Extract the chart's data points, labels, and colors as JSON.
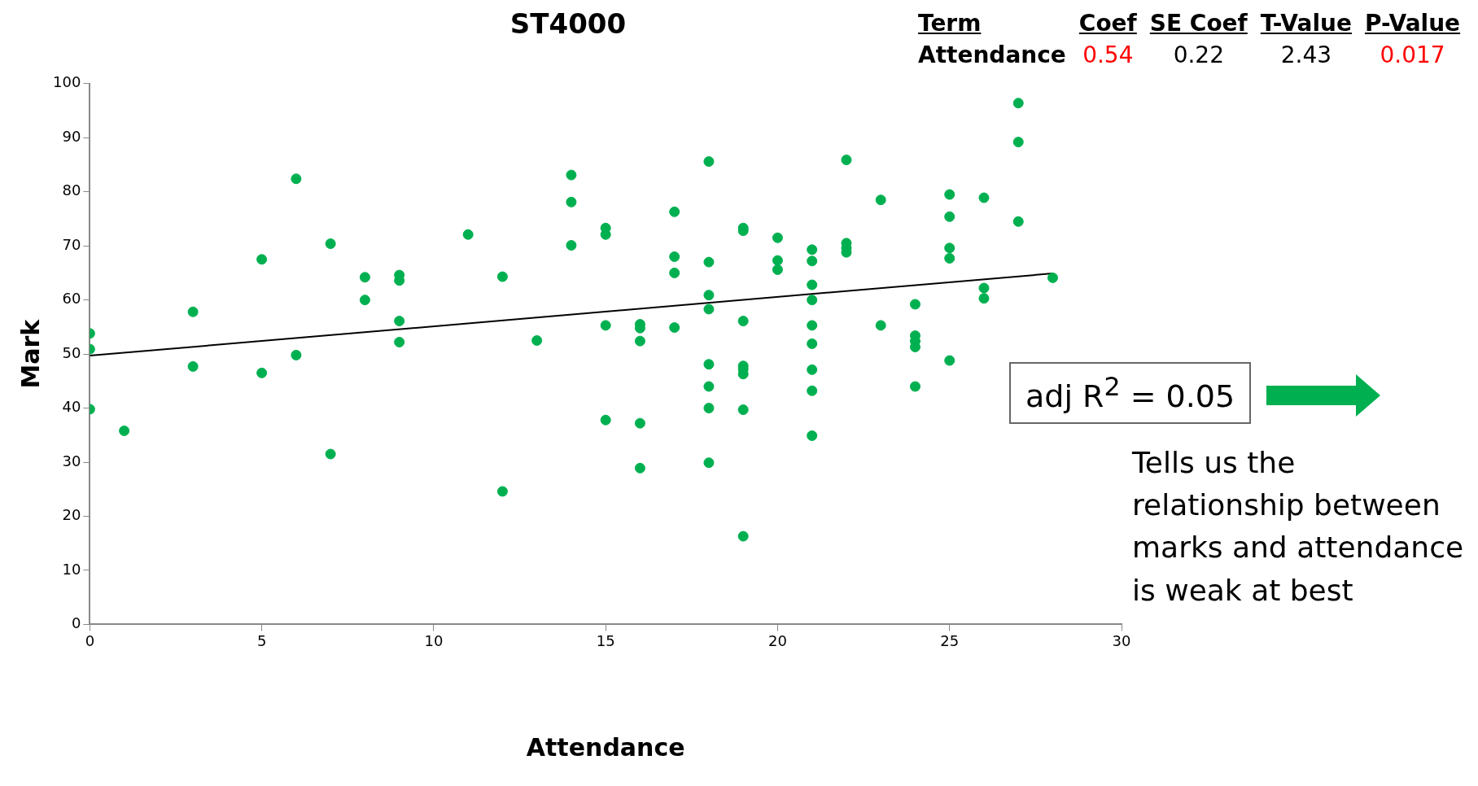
{
  "chart_data": {
    "type": "scatter",
    "title": "ST4000",
    "xlabel": "Attendance",
    "ylabel": "Mark",
    "xlim": [
      0,
      30
    ],
    "xticks": [
      0,
      5,
      10,
      15,
      20,
      25,
      30
    ],
    "ylim": [
      0,
      100
    ],
    "yticks": [
      0,
      10,
      20,
      30,
      40,
      50,
      60,
      70,
      80,
      90,
      100
    ],
    "grid": false,
    "legend": false,
    "series": [
      {
        "marker": "circle",
        "color": "#00b050",
        "x": [
          0,
          0,
          0,
          1,
          3,
          3,
          5,
          5,
          6,
          6,
          7,
          7,
          8,
          8,
          9,
          9,
          9,
          9,
          11,
          12,
          12,
          13,
          14,
          14,
          14,
          15,
          15,
          15,
          15,
          16,
          16,
          16,
          16,
          16,
          17,
          17,
          17,
          17,
          18,
          18,
          18,
          18,
          18,
          18,
          18,
          18,
          19,
          19,
          19,
          19,
          19,
          19,
          19,
          19,
          20,
          20,
          20,
          21,
          21,
          21,
          21,
          21,
          21,
          21,
          21,
          21,
          22,
          22,
          22,
          22,
          23,
          23,
          24,
          24,
          24,
          24,
          24,
          25,
          25,
          25,
          25,
          25,
          26,
          26,
          26,
          27,
          27,
          27,
          28
        ],
        "values": [
          53.8,
          50.9,
          39.8,
          35.8,
          57.8,
          47.7,
          67.5,
          46.5,
          82.4,
          49.8,
          70.4,
          31.5,
          64.2,
          60,
          64.6,
          63.6,
          56.1,
          52.2,
          72.1,
          64.3,
          24.6,
          52.5,
          83.1,
          78.1,
          70.1,
          73.3,
          72.1,
          55.3,
          37.8,
          55.5,
          54.8,
          52.4,
          37.2,
          28.9,
          76.3,
          68,
          65,
          54.9,
          85.6,
          67,
          60.9,
          58.3,
          48.1,
          44,
          40,
          29.9,
          73.3,
          72.8,
          56.1,
          47.8,
          47.2,
          46.3,
          39.7,
          16.3,
          71.5,
          67.3,
          65.6,
          69.3,
          67.2,
          62.8,
          60,
          55.3,
          51.9,
          47.1,
          43.2,
          34.9,
          85.9,
          70.5,
          69.6,
          68.8,
          78.5,
          55.3,
          59.2,
          53.4,
          52.4,
          51.3,
          44,
          79.5,
          75.4,
          69.6,
          67.7,
          48.8,
          78.9,
          62.2,
          60.3,
          96.4,
          89.2,
          74.5,
          64.1
        ]
      },
      {
        "type": "line",
        "color": "#000000",
        "x": [
          0,
          28
        ],
        "values": [
          49.7,
          64.9
        ]
      }
    ],
    "annotations": [
      "Term",
      "Coef",
      "SE Coef",
      "T-Value",
      "P-Value",
      "Attendance",
      "0.54",
      "0.22",
      "2.43",
      "0.017",
      "adj R$^{2}$ = 0.05",
      "Tells us the relationship between marks and attendance is weak at best"
    ]
  }
}
